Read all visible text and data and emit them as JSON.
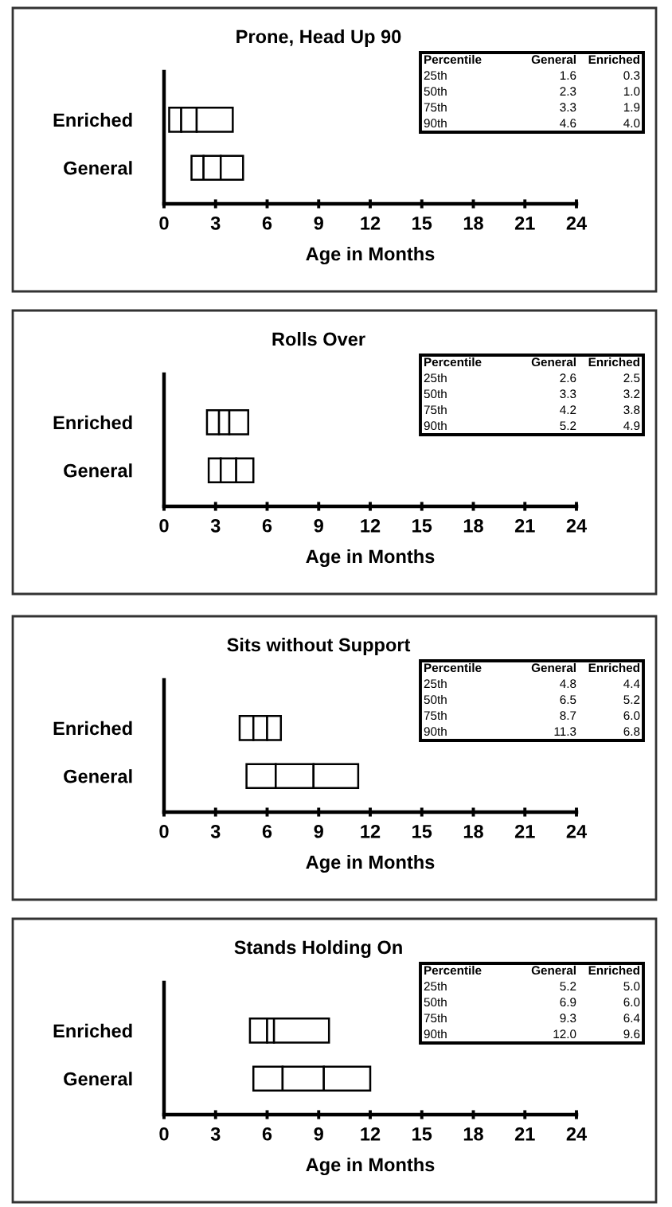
{
  "chart_data": [
    {
      "type": "bar",
      "title": "Prone, Head Up 90",
      "xlabel": "Age in Months",
      "orientation": "horizontal",
      "categories": [
        "Enriched",
        "General"
      ],
      "series": [
        {
          "color": "#ffffff",
          "base": [
            0.3,
            1.6
          ],
          "values": [
            0.7,
            0.7
          ]
        },
        {
          "color": "#ffffff",
          "base": [
            1.0,
            2.3
          ],
          "values": [
            0.9,
            1.0
          ]
        },
        {
          "color": "#ffffff",
          "base": [
            1.9,
            3.3
          ],
          "values": [
            2.1,
            1.3
          ]
        }
      ],
      "xlim": [
        0,
        24
      ],
      "xticks": [
        0,
        3,
        6,
        9,
        12,
        15,
        18,
        21,
        24
      ],
      "grid": false,
      "legend": false,
      "annotations": [
        "Percentile",
        "General",
        "Enriched",
        "25th",
        "1.6",
        "0.3",
        "50th",
        "2.3",
        "1.0",
        "75th",
        "3.3",
        "1.9",
        "90th",
        "4.6",
        "4.0"
      ]
    },
    {
      "type": "bar",
      "title": "Rolls Over",
      "xlabel": "Age in Months",
      "orientation": "horizontal",
      "categories": [
        "Enriched",
        "General"
      ],
      "series": [
        {
          "color": "#ffffff",
          "base": [
            2.5,
            2.6
          ],
          "values": [
            0.7,
            0.7
          ]
        },
        {
          "color": "#ffffff",
          "base": [
            3.2,
            3.3
          ],
          "values": [
            0.6,
            0.9
          ]
        },
        {
          "color": "#ffffff",
          "base": [
            3.8,
            4.2
          ],
          "values": [
            1.1,
            1.0
          ]
        }
      ],
      "xlim": [
        0,
        24
      ],
      "xticks": [
        0,
        3,
        6,
        9,
        12,
        15,
        18,
        21,
        24
      ],
      "grid": false,
      "legend": false,
      "annotations": [
        "Percentile",
        "General",
        "Enriched",
        "25th",
        "2.6",
        "2.5",
        "50th",
        "3.3",
        "3.2",
        "75th",
        "4.2",
        "3.8",
        "90th",
        "5.2",
        "4.9"
      ]
    },
    {
      "type": "bar",
      "title": "Sits without Support",
      "xlabel": "Age in Months",
      "orientation": "horizontal",
      "categories": [
        "Enriched",
        "General"
      ],
      "series": [
        {
          "color": "#ffffff",
          "base": [
            4.4,
            4.8
          ],
          "values": [
            0.8,
            1.7
          ]
        },
        {
          "color": "#ffffff",
          "base": [
            5.2,
            6.5
          ],
          "values": [
            0.8,
            2.2
          ]
        },
        {
          "color": "#ffffff",
          "base": [
            6.0,
            8.7
          ],
          "values": [
            0.8,
            2.6
          ]
        }
      ],
      "xlim": [
        0,
        24
      ],
      "xticks": [
        0,
        3,
        6,
        9,
        12,
        15,
        18,
        21,
        24
      ],
      "grid": false,
      "legend": false,
      "annotations": [
        "Percentile",
        "General",
        "Enriched",
        "25th",
        "4.8",
        "4.4",
        "50th",
        "6.5",
        "5.2",
        "75th",
        "8.7",
        "6.0",
        "90th",
        "11.3",
        "6.8"
      ]
    },
    {
      "type": "bar",
      "title": "Stands Holding On",
      "xlabel": "Age in Months",
      "orientation": "horizontal",
      "categories": [
        "Enriched",
        "General"
      ],
      "series": [
        {
          "color": "#ffffff",
          "base": [
            5.0,
            5.2
          ],
          "values": [
            1.0,
            1.7
          ]
        },
        {
          "color": "#ffffff",
          "base": [
            6.0,
            6.9
          ],
          "values": [
            0.4,
            2.4
          ]
        },
        {
          "color": "#ffffff",
          "base": [
            6.4,
            9.3
          ],
          "values": [
            3.2,
            2.7
          ]
        }
      ],
      "xlim": [
        0,
        24
      ],
      "xticks": [
        0,
        3,
        6,
        9,
        12,
        15,
        18,
        21,
        24
      ],
      "grid": false,
      "legend": false,
      "annotations": [
        "Percentile",
        "General",
        "Enriched",
        "25th",
        "5.2",
        "5.0",
        "50th",
        "6.9",
        "6.0",
        "75th",
        "9.3",
        "6.4",
        "90th",
        "12.0",
        "9.6"
      ]
    }
  ]
}
